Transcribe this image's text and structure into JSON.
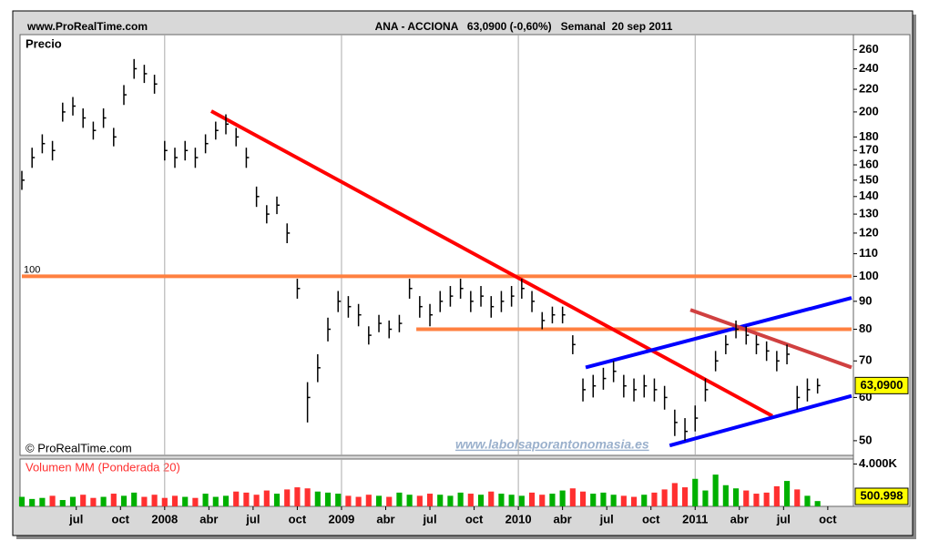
{
  "chart_data": {
    "type": "ohlc",
    "site": "www.ProRealTime.com",
    "title": "ANA - ACCIONA   63,0900 (-0,60%)   Semanal  20 sep 2011",
    "panel_label": "Precio",
    "copyright": "© ProRealTime.com",
    "watermark": "www.labolsaporantonomasia.es",
    "log_scale": true,
    "bar_color": "#000000",
    "x": [
      0,
      3,
      6,
      9,
      12,
      15,
      18,
      21,
      24,
      27,
      30,
      33,
      36,
      39,
      42,
      45,
      48,
      51,
      54,
      57,
      60,
      63,
      66,
      69,
      72,
      75,
      78,
      81,
      84,
      87,
      90,
      93,
      96,
      99,
      102,
      105,
      108,
      111,
      114,
      117,
      120,
      123,
      126,
      129,
      132,
      135,
      138,
      141,
      144,
      147,
      150,
      153,
      156,
      159,
      162,
      165,
      168,
      171,
      174,
      177,
      180,
      183,
      186,
      189,
      192,
      195,
      198,
      201,
      204,
      207,
      210,
      213,
      216,
      219,
      222,
      225,
      228,
      231,
      234
    ],
    "high": [
      156,
      172,
      182,
      177,
      208,
      213,
      203,
      192,
      203,
      187,
      224,
      250,
      244,
      234,
      177,
      172,
      177,
      172,
      182,
      192,
      198,
      187,
      172,
      146,
      135,
      140,
      125,
      99,
      64,
      72,
      84,
      94,
      92,
      89,
      81,
      85,
      83,
      85,
      99,
      92,
      89,
      94,
      96,
      99,
      94,
      96,
      92,
      94,
      96,
      99,
      94,
      86,
      88,
      88,
      78,
      65,
      66,
      68,
      70,
      66,
      65,
      66,
      65,
      63,
      57,
      55,
      58,
      65,
      73,
      78,
      83,
      81,
      78,
      76,
      73,
      75,
      63,
      65,
      65
    ],
    "low": [
      144,
      158,
      168,
      163,
      192,
      197,
      187,
      178,
      187,
      173,
      206,
      230,
      226,
      216,
      163,
      158,
      163,
      158,
      168,
      178,
      182,
      173,
      158,
      134,
      125,
      130,
      115,
      91,
      54,
      64,
      76,
      86,
      84,
      81,
      75,
      79,
      77,
      79,
      91,
      84,
      81,
      86,
      88,
      91,
      86,
      88,
      84,
      86,
      88,
      91,
      86,
      80,
      82,
      82,
      72,
      59,
      60,
      62,
      64,
      60,
      59,
      60,
      59,
      57,
      51,
      50,
      52,
      59,
      67,
      72,
      77,
      75,
      72,
      70,
      67,
      69,
      57,
      59,
      61
    ],
    "values": [
      150,
      165,
      175,
      170,
      200,
      205,
      195,
      185,
      195,
      180,
      215,
      240,
      235,
      225,
      170,
      165,
      170,
      165,
      175,
      185,
      190,
      180,
      165,
      140,
      130,
      135,
      120,
      95,
      60,
      68,
      80,
      90,
      88,
      85,
      78,
      82,
      80,
      82,
      95,
      88,
      85,
      90,
      92,
      95,
      90,
      92,
      88,
      90,
      92,
      95,
      90,
      83,
      85,
      85,
      75,
      62,
      63,
      65,
      67,
      63,
      62,
      63,
      62,
      60,
      54,
      52,
      55,
      62,
      70,
      75,
      80,
      78,
      75,
      73,
      70,
      72,
      60,
      62,
      63.09
    ],
    "current": {
      "value": 63.09,
      "label": "63,0900"
    },
    "xlim": [
      0,
      244
    ],
    "xticks": [
      {
        "value": 16,
        "label": "jul"
      },
      {
        "value": 29,
        "label": "oct"
      },
      {
        "value": 42,
        "label": "2008",
        "major": true
      },
      {
        "value": 55,
        "label": "abr"
      },
      {
        "value": 68,
        "label": "jul"
      },
      {
        "value": 81,
        "label": "oct"
      },
      {
        "value": 94,
        "label": "2009",
        "major": true
      },
      {
        "value": 107,
        "label": "abr"
      },
      {
        "value": 120,
        "label": "jul"
      },
      {
        "value": 133,
        "label": "oct"
      },
      {
        "value": 146,
        "label": "2010",
        "major": true
      },
      {
        "value": 159,
        "label": "abr"
      },
      {
        "value": 172,
        "label": "jul"
      },
      {
        "value": 185,
        "label": "oct"
      },
      {
        "value": 198,
        "label": "2011",
        "major": true
      },
      {
        "value": 211,
        "label": "abr"
      },
      {
        "value": 224,
        "label": "jul"
      },
      {
        "value": 237,
        "label": "oct"
      }
    ],
    "ylim": [
      47,
      275
    ],
    "yticks": [
      50,
      60,
      70,
      80,
      90,
      100,
      110,
      120,
      130,
      140,
      150,
      160,
      170,
      180,
      200,
      220,
      240,
      260
    ],
    "lines": [
      {
        "color": "#ff8040",
        "x1": 0,
        "y1": 100,
        "x2": 244,
        "y2": 100,
        "label": "100"
      },
      {
        "color": "#ff8040",
        "x1": 116,
        "y1": 80,
        "x2": 244,
        "y2": 80
      },
      {
        "color": "#ff0000",
        "x1": 55.7,
        "y1": 200.7,
        "x2": 220.7,
        "y2": 55.5
      },
      {
        "color": "#0000ff",
        "x1": 190.5,
        "y1": 49,
        "x2": 244,
        "y2": 60.4
      },
      {
        "color": "#0000ff",
        "x1": 165.8,
        "y1": 68.1,
        "x2": 244,
        "y2": 91.3
      },
      {
        "color": "#d04040",
        "x1": 196.6,
        "y1": 86.8,
        "x2": 244,
        "y2": 68.1
      }
    ],
    "volume": {
      "label": "Volumen MM (Ponderada 20)",
      "up_color": "#00b000",
      "down_color": "#ff3030",
      "values": [
        900,
        700,
        800,
        1000,
        600,
        900,
        1100,
        800,
        900,
        1200,
        1000,
        1300,
        900,
        1100,
        800,
        1000,
        900,
        800,
        1200,
        900,
        1000,
        1400,
        1300,
        1100,
        1500,
        1200,
        1600,
        1800,
        1700,
        1400,
        1300,
        1200,
        1000,
        900,
        1100,
        1000,
        900,
        1300,
        1100,
        1000,
        1200,
        1100,
        1000,
        1300,
        1200,
        1100,
        1400,
        1200,
        1100,
        1000,
        1300,
        1100,
        1200,
        1500,
        1700,
        1400,
        1200,
        1300,
        1100,
        1000,
        900,
        1100,
        1300,
        1600,
        2200,
        1800,
        2600,
        1500,
        3000,
        2000,
        1700,
        1500,
        1200,
        1300,
        1900,
        2400,
        1600,
        1000,
        500.998
      ],
      "current": {
        "value": 500.998,
        "label": "500.998"
      },
      "ylim": [
        0,
        4300
      ],
      "yticks": [
        {
          "value": 4000,
          "label": "4.000K"
        }
      ]
    }
  }
}
